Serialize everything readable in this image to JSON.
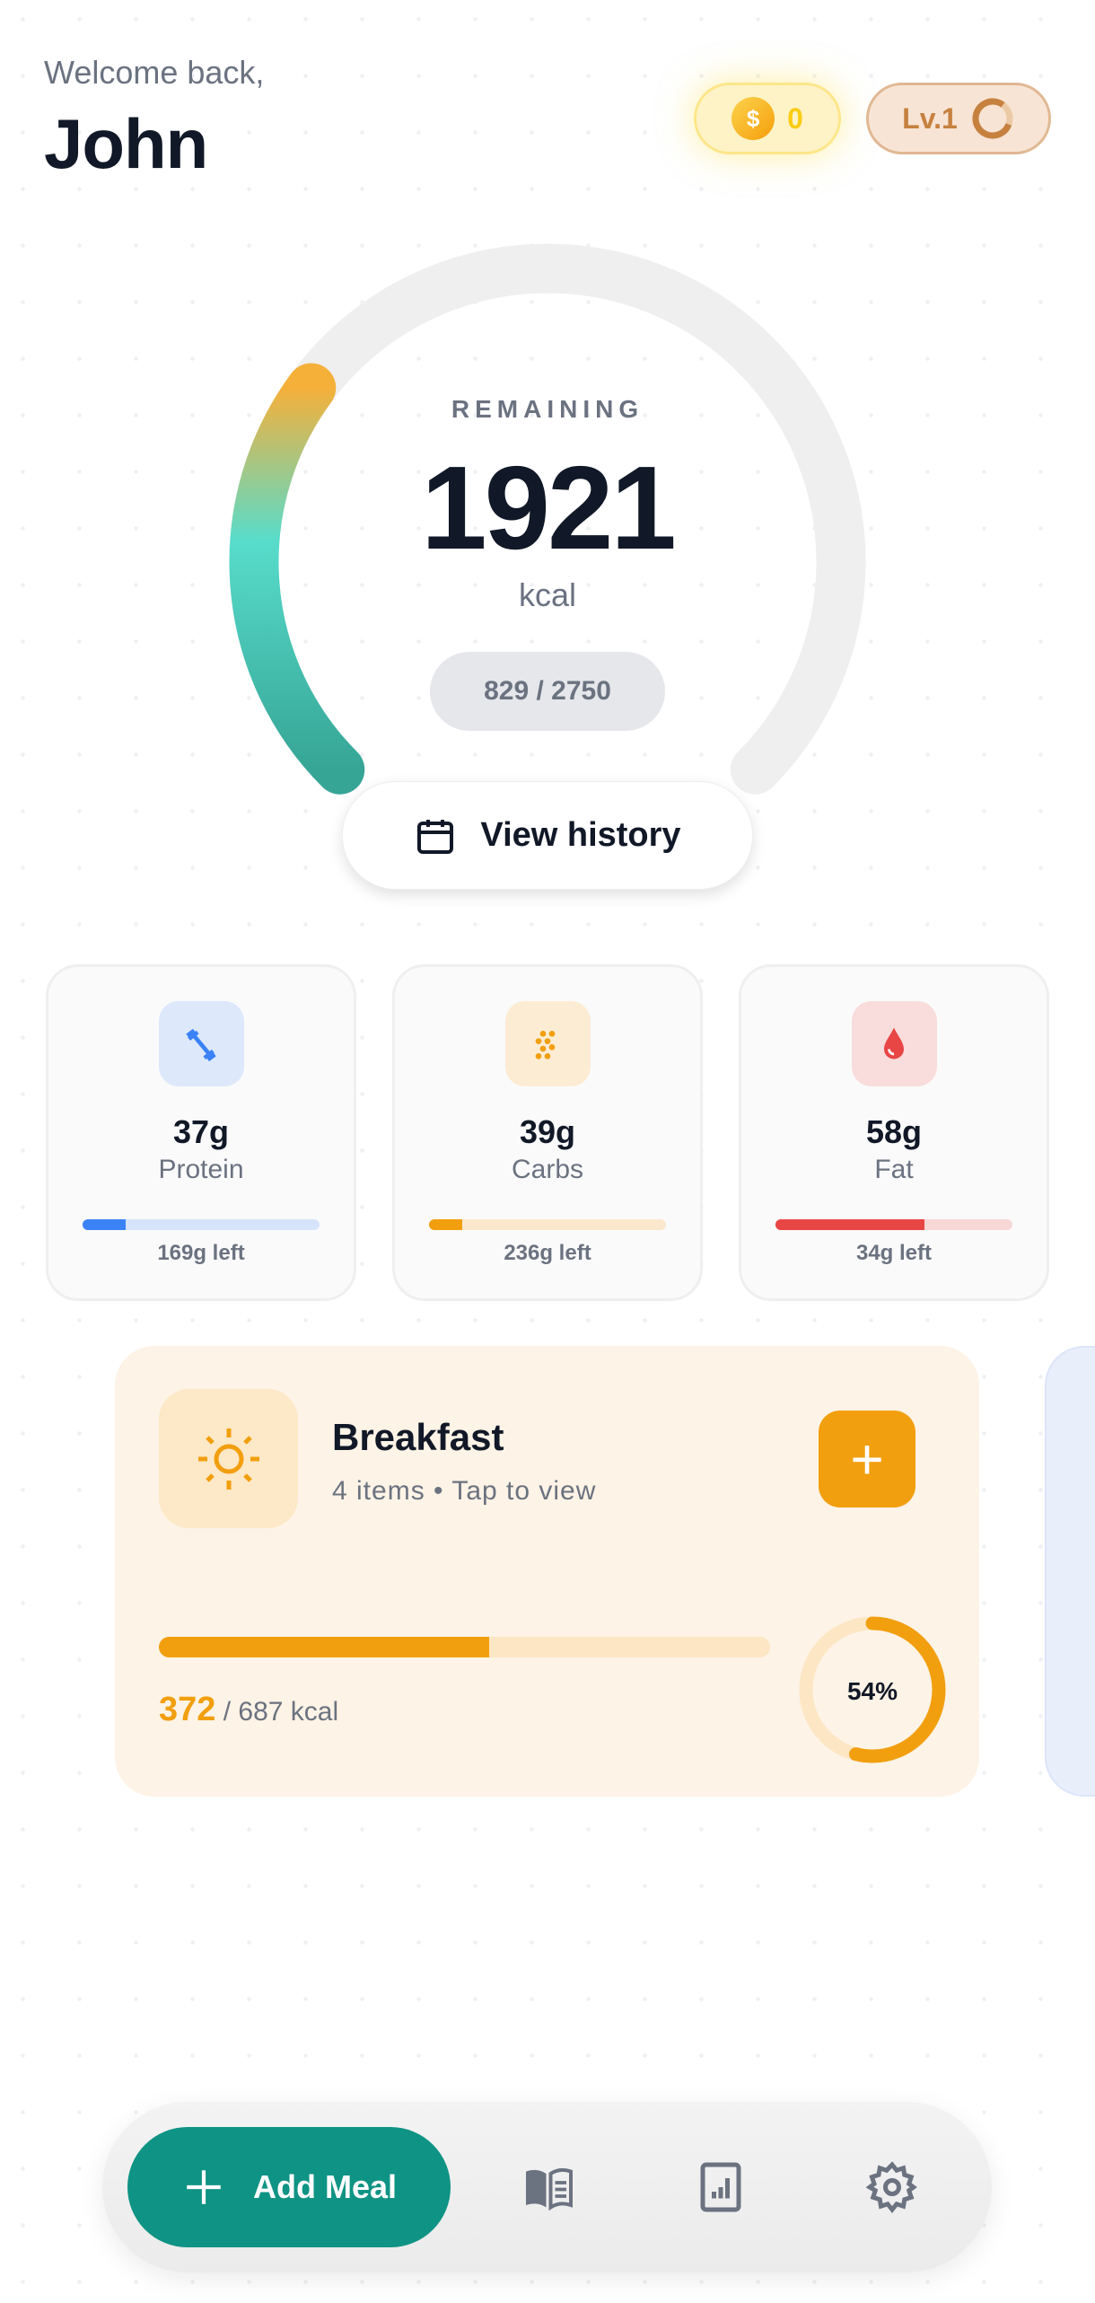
{
  "header": {
    "welcome": "Welcome back,",
    "name": "John",
    "coins": "0",
    "level": "Lv.1",
    "level_progress": 0.2
  },
  "calories": {
    "label": "REMAINING",
    "remaining": "1921",
    "unit": "kcal",
    "consumed_of_goal": "829 / 2750",
    "consumed": 829,
    "goal": 2750,
    "history_button": "View history"
  },
  "macros": [
    {
      "value": "37g",
      "label": "Protein",
      "left": "169g left",
      "progress": 0.18,
      "color": "#3b82f6",
      "track": "#d6e4fb",
      "bg": "#dde8fb",
      "icon": "dumbbell-icon"
    },
    {
      "value": "39g",
      "label": "Carbs",
      "left": "236g left",
      "progress": 0.14,
      "color": "#f29f0f",
      "track": "#fbe8cc",
      "bg": "#fcecd3",
      "icon": "grain-icon"
    },
    {
      "value": "58g",
      "label": "Fat",
      "left": "34g left",
      "progress": 0.63,
      "color": "#e84545",
      "track": "#f8d7d7",
      "bg": "#f9dcdc",
      "icon": "drop-icon"
    }
  ],
  "meal": {
    "title": "Breakfast",
    "subtitle": "4 items • Tap to view",
    "consumed": "372",
    "of": "/ 687 kcal",
    "percent": "54%",
    "progress": 0.54,
    "color": "#f29f0f"
  },
  "nav": {
    "add_meal": "Add Meal",
    "accent": "#0f9384"
  }
}
